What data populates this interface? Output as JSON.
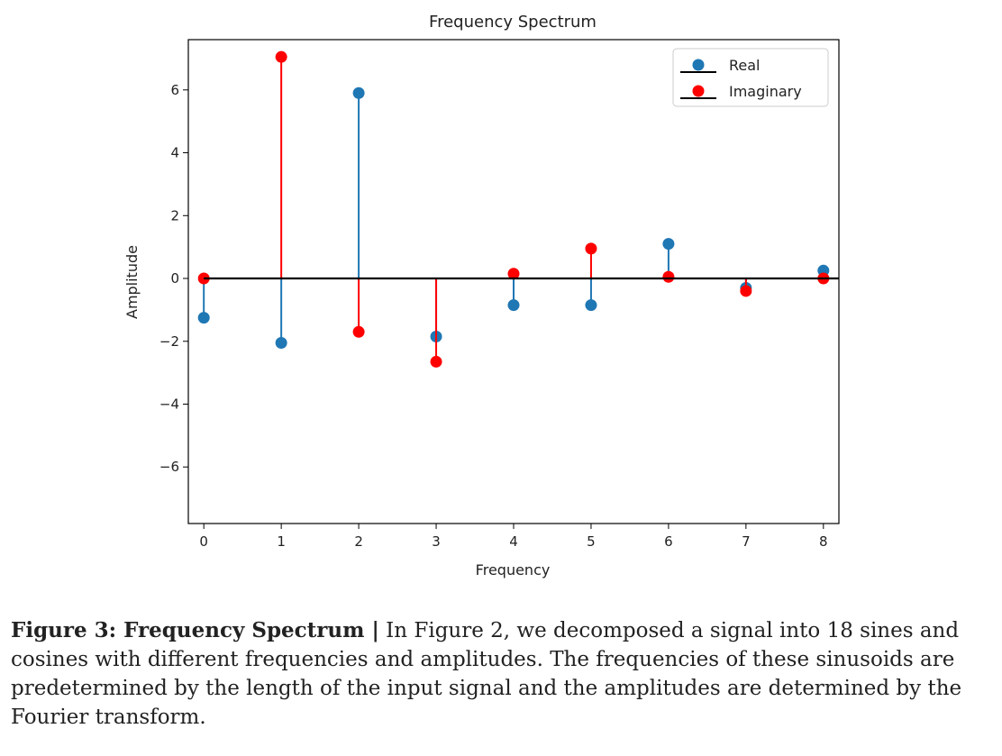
{
  "chart_data": {
    "type": "stem",
    "title": "Frequency Spectrum",
    "xlabel": "Frequency",
    "ylabel": "Amplitude",
    "xlim": [
      -0.2,
      8.2
    ],
    "ylim": [
      -7.8,
      7.6
    ],
    "xticks": [
      0,
      1,
      2,
      3,
      4,
      5,
      6,
      7,
      8
    ],
    "yticks": [
      -6,
      -4,
      -2,
      0,
      2,
      4,
      6
    ],
    "baseline": 0,
    "grid": false,
    "legend_position": "top-right",
    "x": [
      0,
      1,
      2,
      3,
      4,
      5,
      6,
      7,
      8
    ],
    "series": [
      {
        "name": "Real",
        "color": "#1f77b4",
        "values": [
          -1.25,
          -2.05,
          5.9,
          -1.85,
          -0.85,
          -0.85,
          1.1,
          -0.3,
          0.25
        ]
      },
      {
        "name": "Imaginary",
        "color": "#ff0000",
        "values": [
          0.0,
          7.05,
          -1.7,
          -2.65,
          0.15,
          0.95,
          0.05,
          -0.4,
          0.0
        ]
      }
    ]
  },
  "caption": {
    "label": "Figure 3: Frequency Spectrum |",
    "text": " In Figure 2, we decomposed a signal into 18 sines and cosines with different frequencies and amplitudes. The frequencies of these sinusoids are predetermined by the length of the input signal and the amplitudes are determined by the Fourier transform."
  }
}
